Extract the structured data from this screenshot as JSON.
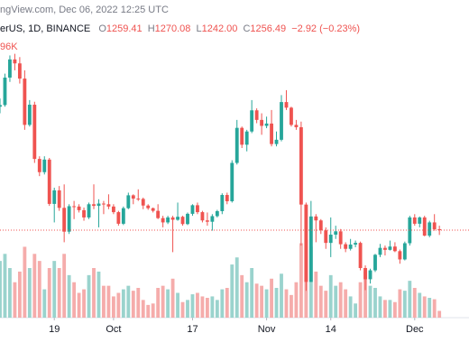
{
  "chart_data": {
    "type": "candlestick",
    "source": "ngView.com, Dec 06, 2022 12:25 UTC",
    "symbol": "erUS, 1D, BINANCE",
    "ohlc_letters": [
      "O",
      "H",
      "L",
      "C"
    ],
    "ohlc_labels": [
      "1259.41",
      "1270.08",
      "1242.00",
      "1256.49"
    ],
    "change_label": "−2.92 (−0.23%)",
    "volume_label": "96K",
    "up_color": "#26a69a",
    "down_color": "#ef5350",
    "volume_up_color": "#9ad3cd",
    "volume_down_color": "#f5acab",
    "x": [
      "2022-09-08",
      "2022-09-09",
      "2022-09-10",
      "2022-09-11",
      "2022-09-12",
      "2022-09-13",
      "2022-09-14",
      "2022-09-15",
      "2022-09-16",
      "2022-09-17",
      "2022-09-18",
      "2022-09-19",
      "2022-09-20",
      "2022-09-21",
      "2022-09-22",
      "2022-09-23",
      "2022-09-24",
      "2022-09-25",
      "2022-09-26",
      "2022-09-27",
      "2022-09-28",
      "2022-09-29",
      "2022-09-30",
      "2022-10-01",
      "2022-10-02",
      "2022-10-03",
      "2022-10-04",
      "2022-10-05",
      "2022-10-06",
      "2022-10-07",
      "2022-10-08",
      "2022-10-09",
      "2022-10-10",
      "2022-10-11",
      "2022-10-12",
      "2022-10-13",
      "2022-10-14",
      "2022-10-15",
      "2022-10-16",
      "2022-10-17",
      "2022-10-18",
      "2022-10-19",
      "2022-10-20",
      "2022-10-21",
      "2022-10-22",
      "2022-10-23",
      "2022-10-24",
      "2022-10-25",
      "2022-10-26",
      "2022-10-27",
      "2022-10-28",
      "2022-10-29",
      "2022-10-30",
      "2022-10-31",
      "2022-11-01",
      "2022-11-02",
      "2022-11-03",
      "2022-11-04",
      "2022-11-05",
      "2022-11-06",
      "2022-11-07",
      "2022-11-08",
      "2022-11-09",
      "2022-11-10",
      "2022-11-11",
      "2022-11-12",
      "2022-11-13",
      "2022-11-14",
      "2022-11-15",
      "2022-11-16",
      "2022-11-17",
      "2022-11-18",
      "2022-11-19",
      "2022-11-20",
      "2022-11-21",
      "2022-11-22",
      "2022-11-23",
      "2022-11-24",
      "2022-11-25",
      "2022-11-26",
      "2022-11-27",
      "2022-11-28",
      "2022-11-29",
      "2022-11-30",
      "2022-12-01",
      "2022-12-02",
      "2022-12-03",
      "2022-12-04",
      "2022-12-05",
      "2022-12-06"
    ],
    "open": [
      1630,
      1635,
      1718,
      1773,
      1761,
      1715,
      1575,
      1636,
      1472,
      1432,
      1470,
      1336,
      1377,
      1324,
      1252,
      1329,
      1328,
      1317,
      1295,
      1335,
      1330,
      1337,
      1335,
      1328,
      1311,
      1276,
      1323,
      1362,
      1352,
      1351,
      1331,
      1323,
      1315,
      1293,
      1280,
      1295,
      1288,
      1297,
      1275,
      1306,
      1332,
      1311,
      1286,
      1282,
      1299,
      1314,
      1363,
      1344,
      1460,
      1566,
      1515,
      1555,
      1619,
      1590,
      1572,
      1579,
      1517,
      1530,
      1644,
      1627,
      1575,
      1568,
      1334,
      1100,
      1298,
      1286,
      1256,
      1218,
      1243,
      1253,
      1214,
      1200,
      1213,
      1218,
      1142,
      1108,
      1135,
      1182,
      1203,
      1197,
      1207,
      1193,
      1168,
      1217,
      1295,
      1276,
      1295,
      1240,
      1280,
      1259.41
    ],
    "high": [
      1655,
      1730,
      1785,
      1790,
      1780,
      1740,
      1650,
      1645,
      1480,
      1480,
      1475,
      1385,
      1390,
      1395,
      1335,
      1345,
      1335,
      1325,
      1340,
      1395,
      1350,
      1345,
      1365,
      1335,
      1315,
      1328,
      1370,
      1365,
      1380,
      1355,
      1335,
      1325,
      1335,
      1300,
      1300,
      1300,
      1340,
      1300,
      1310,
      1335,
      1340,
      1315,
      1310,
      1305,
      1318,
      1368,
      1370,
      1468,
      1590,
      1570,
      1560,
      1650,
      1625,
      1610,
      1600,
      1620,
      1555,
      1665,
      1680,
      1630,
      1590,
      1585,
      1340,
      1345,
      1305,
      1290,
      1265,
      1295,
      1270,
      1260,
      1220,
      1230,
      1225,
      1222,
      1150,
      1140,
      1185,
      1215,
      1210,
      1225,
      1220,
      1198,
      1222,
      1300,
      1305,
      1298,
      1300,
      1285,
      1305,
      1270.08
    ],
    "low": [
      1610,
      1630,
      1705,
      1740,
      1700,
      1560,
      1570,
      1460,
      1420,
      1425,
      1330,
      1280,
      1315,
      1220,
      1245,
      1290,
      1310,
      1285,
      1290,
      1320,
      1265,
      1305,
      1320,
      1305,
      1270,
      1272,
      1320,
      1335,
      1345,
      1320,
      1318,
      1310,
      1290,
      1265,
      1275,
      1190,
      1285,
      1270,
      1272,
      1300,
      1305,
      1280,
      1270,
      1255,
      1295,
      1305,
      1335,
      1340,
      1455,
      1505,
      1495,
      1550,
      1580,
      1545,
      1565,
      1510,
      1510,
      1525,
      1620,
      1570,
      1560,
      1210,
      1073,
      1100,
      1220,
      1245,
      1200,
      1175,
      1230,
      1200,
      1190,
      1195,
      1205,
      1135,
      1075,
      1095,
      1130,
      1175,
      1180,
      1195,
      1190,
      1155,
      1165,
      1210,
      1270,
      1265,
      1238,
      1235,
      1255,
      1242
    ],
    "close": [
      1635,
      1718,
      1773,
      1761,
      1715,
      1575,
      1636,
      1472,
      1432,
      1470,
      1336,
      1377,
      1324,
      1252,
      1329,
      1328,
      1317,
      1295,
      1335,
      1330,
      1337,
      1335,
      1328,
      1311,
      1276,
      1323,
      1362,
      1352,
      1351,
      1331,
      1323,
      1315,
      1293,
      1280,
      1295,
      1288,
      1297,
      1275,
      1306,
      1332,
      1311,
      1286,
      1282,
      1299,
      1314,
      1363,
      1344,
      1460,
      1566,
      1515,
      1555,
      1619,
      1590,
      1572,
      1579,
      1517,
      1530,
      1644,
      1627,
      1575,
      1568,
      1334,
      1100,
      1298,
      1286,
      1256,
      1218,
      1243,
      1253,
      1214,
      1200,
      1213,
      1218,
      1142,
      1108,
      1135,
      1182,
      1203,
      1197,
      1207,
      1193,
      1168,
      1217,
      1295,
      1276,
      1295,
      1240,
      1280,
      1259.41,
      1256.49
    ],
    "volume": [
      800,
      900,
      700,
      500,
      650,
      1000,
      700,
      900,
      800,
      400,
      700,
      800,
      700,
      900,
      600,
      500,
      350,
      400,
      600,
      700,
      650,
      450,
      450,
      300,
      350,
      400,
      450,
      380,
      420,
      250,
      180,
      200,
      420,
      450,
      400,
      550,
      350,
      220,
      250,
      330,
      350,
      300,
      280,
      300,
      250,
      400,
      420,
      750,
      850,
      600,
      500,
      700,
      480,
      450,
      400,
      550,
      420,
      620,
      400,
      320,
      500,
      1050,
      1100,
      1000,
      650,
      450,
      380,
      600,
      450,
      500,
      400,
      300,
      200,
      500,
      650,
      450,
      420,
      300,
      250,
      250,
      220,
      400,
      380,
      520,
      420,
      350,
      300,
      280,
      260,
      96
    ],
    "xlim": [
      "2022-09-08",
      "2022-12-12"
    ],
    "ylim": [
      1000,
      1950
    ],
    "vlim": [
      0,
      1400
    ],
    "xticks": [
      {
        "value": "2022-09-19",
        "label": "19"
      },
      {
        "value": "2022-10-01",
        "label": "Oct"
      },
      {
        "value": "2022-10-17",
        "label": "17"
      },
      {
        "value": "2022-11-01",
        "label": "Nov"
      },
      {
        "value": "2022-11-14",
        "label": "14"
      },
      {
        "value": "2022-12-01",
        "label": "Dec"
      }
    ]
  }
}
